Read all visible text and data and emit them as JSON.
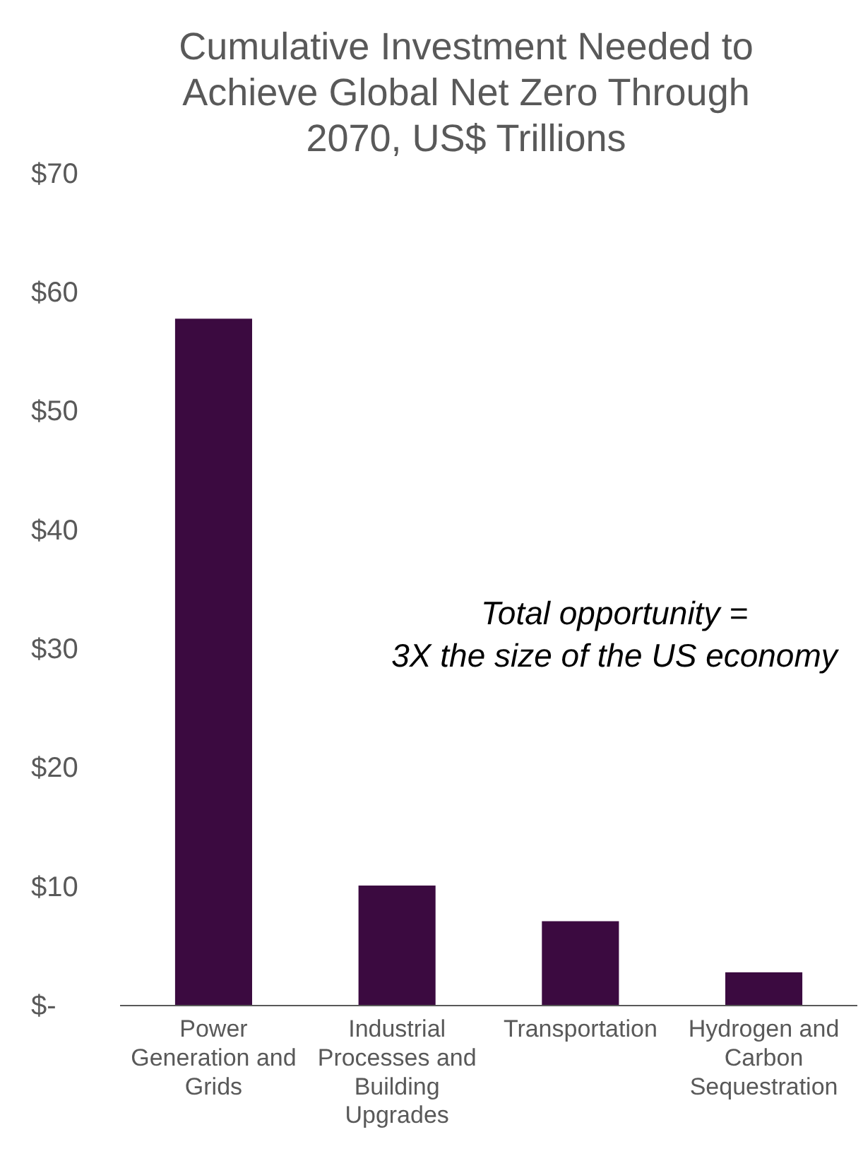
{
  "chart_data": {
    "type": "bar",
    "title": "Cumulative Investment Needed to Achieve Global Net Zero Through 2070, US$ Trillions",
    "categories": [
      "Power Generation and Grids",
      "Industrial Processes and Building Upgrades",
      "Transportation",
      "Hydrogen and Carbon Sequestration"
    ],
    "values": [
      57.8,
      10.1,
      7.1,
      2.8
    ],
    "color": "#3b0a40",
    "ylim": [
      0,
      70
    ],
    "yticks": [
      {
        "value": 0,
        "label": "$-"
      },
      {
        "value": 10,
        "label": "$10"
      },
      {
        "value": 20,
        "label": "$20"
      },
      {
        "value": 30,
        "label": "$30"
      },
      {
        "value": 40,
        "label": "$40"
      },
      {
        "value": 50,
        "label": "$50"
      },
      {
        "value": 60,
        "label": "$60"
      },
      {
        "value": 70,
        "label": "$70"
      }
    ],
    "grid": false,
    "annotations": [
      "Total opportunity =\n3X the size of the US economy"
    ]
  }
}
